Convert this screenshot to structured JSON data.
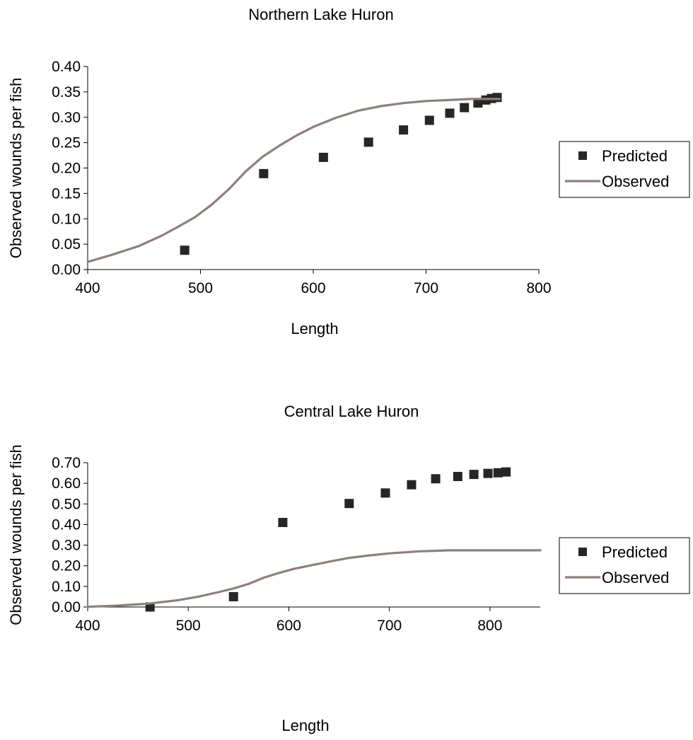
{
  "chart_data": [
    {
      "type": "scatter",
      "title": "Northern Lake Huron",
      "xlabel": "Length",
      "ylabel": "Observed wounds per fish",
      "xlim": [
        400,
        800
      ],
      "ylim": [
        0.0,
        0.4
      ],
      "x_ticks": [
        "400",
        "500",
        "600",
        "700",
        "800"
      ],
      "y_ticks": [
        "0.00",
        "0.05",
        "0.10",
        "0.15",
        "0.20",
        "0.25",
        "0.30",
        "0.35",
        "0.40"
      ],
      "legend_position": "right",
      "series": [
        {
          "name": "Predicted",
          "type": "scatter",
          "color": "#262626",
          "x": [
            486,
            556,
            609,
            649,
            680,
            703,
            721,
            734,
            746,
            753,
            758,
            763
          ],
          "y": [
            0.038,
            0.189,
            0.221,
            0.251,
            0.275,
            0.294,
            0.308,
            0.319,
            0.328,
            0.334,
            0.337,
            0.339
          ]
        },
        {
          "name": "Observed",
          "type": "line",
          "color": "#8e7f7c",
          "x": [
            400,
            420,
            445,
            465,
            480,
            495,
            510,
            525,
            540,
            555,
            570,
            585,
            600,
            620,
            640,
            660,
            680,
            700,
            720,
            740,
            765
          ],
          "y": [
            0.015,
            0.028,
            0.046,
            0.066,
            0.084,
            0.103,
            0.128,
            0.158,
            0.193,
            0.222,
            0.244,
            0.264,
            0.281,
            0.299,
            0.313,
            0.322,
            0.328,
            0.332,
            0.334,
            0.336,
            0.336
          ]
        }
      ]
    },
    {
      "type": "scatter",
      "title": "Central Lake Huron",
      "xlabel": "Length",
      "ylabel": "Observed wounds per fish",
      "xlim": [
        400,
        850
      ],
      "ylim": [
        0.0,
        0.7
      ],
      "x_ticks": [
        "400",
        "500",
        "600",
        "700",
        "800"
      ],
      "y_ticks": [
        "0.00",
        "0.10",
        "0.20",
        "0.30",
        "0.40",
        "0.50",
        "0.60",
        "0.70"
      ],
      "legend_position": "right",
      "series": [
        {
          "name": "Predicted",
          "type": "scatter",
          "color": "#262626",
          "x": [
            462,
            545,
            594,
            660,
            696,
            722,
            746,
            768,
            784,
            798,
            808,
            816
          ],
          "y": [
            0.0,
            0.05,
            0.41,
            0.502,
            0.553,
            0.593,
            0.622,
            0.633,
            0.643,
            0.648,
            0.651,
            0.655
          ]
        },
        {
          "name": "Observed",
          "type": "line",
          "color": "#8e7f7c",
          "x": [
            400,
            430,
            460,
            490,
            510,
            530,
            545,
            560,
            575,
            590,
            605,
            620,
            640,
            660,
            680,
            700,
            730,
            760,
            800,
            850
          ],
          "y": [
            0.001,
            0.007,
            0.016,
            0.033,
            0.05,
            0.072,
            0.09,
            0.112,
            0.142,
            0.165,
            0.185,
            0.2,
            0.22,
            0.238,
            0.25,
            0.26,
            0.27,
            0.275,
            0.275,
            0.275
          ]
        }
      ]
    }
  ]
}
